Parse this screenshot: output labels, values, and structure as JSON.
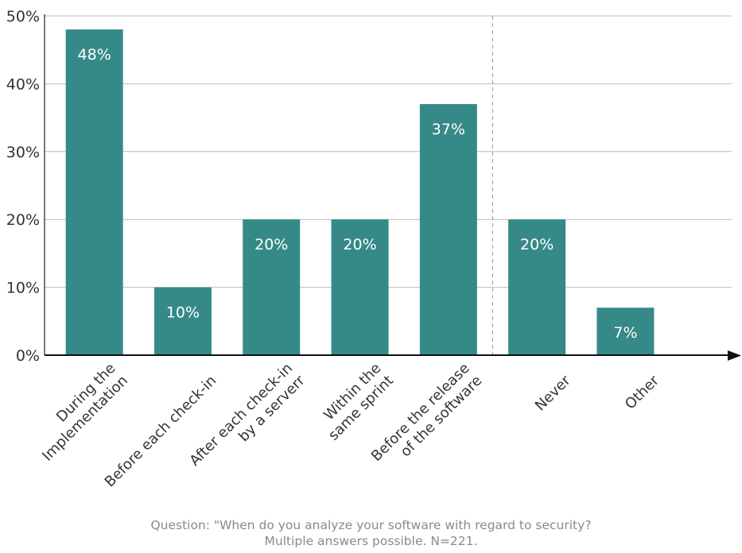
{
  "chart_data": {
    "type": "bar",
    "categories": [
      [
        "During the",
        "Implementation"
      ],
      [
        "Before each check-in"
      ],
      [
        "After each check-in",
        "by a serverr"
      ],
      [
        "Within the",
        "same sprint"
      ],
      [
        "Before the release",
        "of the software"
      ],
      [
        "Never"
      ],
      [
        "Other"
      ]
    ],
    "values": [
      48,
      10,
      20,
      20,
      37,
      20,
      7
    ],
    "data_labels": [
      "48%",
      "10%",
      "20%",
      "20%",
      "37%",
      "20%",
      "7%"
    ],
    "ylim": [
      0,
      50
    ],
    "y_ticks": [
      0,
      10,
      20,
      30,
      40,
      50
    ],
    "y_tick_labels": [
      "0%",
      "10%",
      "20%",
      "30%",
      "40%",
      "50%"
    ],
    "grid": true,
    "bar_color": "#358a87",
    "separator_after_category_index": 4
  },
  "caption": {
    "line1": "Question: \"When do you analyze your software with regard to security?",
    "line2": "Multiple answers possible. N=221."
  }
}
